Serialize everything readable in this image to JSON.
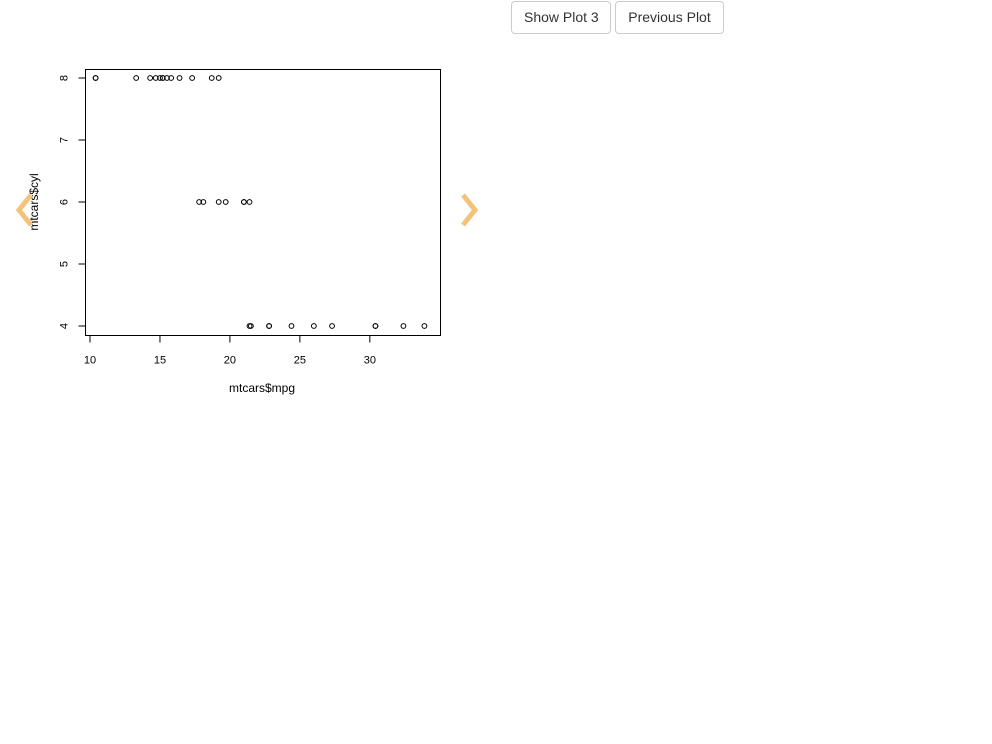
{
  "toolbar": {
    "show_plot_label": "Show Plot 3",
    "previous_plot_label": "Previous Plot"
  },
  "carousel": {
    "left_icon": "chevron-left-icon",
    "right_icon": "chevron-right-icon",
    "arrow_color": "#f6c27a"
  },
  "chart_data": {
    "type": "scatter",
    "xlabel": "mtcars$mpg",
    "ylabel": "mtcars$cyl",
    "xlim": [
      9.5,
      34.8
    ],
    "ylim": [
      3.8,
      8.2
    ],
    "x_ticks": [
      10,
      15,
      20,
      25,
      30
    ],
    "y_ticks": [
      4,
      5,
      6,
      7,
      8
    ],
    "marker": "open-circle",
    "grid": false,
    "points": [
      {
        "x": 21.0,
        "y": 6
      },
      {
        "x": 21.0,
        "y": 6
      },
      {
        "x": 22.8,
        "y": 4
      },
      {
        "x": 21.4,
        "y": 6
      },
      {
        "x": 18.7,
        "y": 8
      },
      {
        "x": 18.1,
        "y": 6
      },
      {
        "x": 14.3,
        "y": 8
      },
      {
        "x": 24.4,
        "y": 4
      },
      {
        "x": 22.8,
        "y": 4
      },
      {
        "x": 19.2,
        "y": 6
      },
      {
        "x": 17.8,
        "y": 6
      },
      {
        "x": 16.4,
        "y": 8
      },
      {
        "x": 17.3,
        "y": 8
      },
      {
        "x": 15.2,
        "y": 8
      },
      {
        "x": 10.4,
        "y": 8
      },
      {
        "x": 10.4,
        "y": 8
      },
      {
        "x": 14.7,
        "y": 8
      },
      {
        "x": 32.4,
        "y": 4
      },
      {
        "x": 30.4,
        "y": 4
      },
      {
        "x": 33.9,
        "y": 4
      },
      {
        "x": 21.5,
        "y": 4
      },
      {
        "x": 15.5,
        "y": 8
      },
      {
        "x": 15.2,
        "y": 8
      },
      {
        "x": 13.3,
        "y": 8
      },
      {
        "x": 19.2,
        "y": 8
      },
      {
        "x": 27.3,
        "y": 4
      },
      {
        "x": 26.0,
        "y": 4
      },
      {
        "x": 30.4,
        "y": 4
      },
      {
        "x": 15.8,
        "y": 8
      },
      {
        "x": 19.7,
        "y": 6
      },
      {
        "x": 15.0,
        "y": 8
      },
      {
        "x": 21.4,
        "y": 4
      }
    ]
  }
}
